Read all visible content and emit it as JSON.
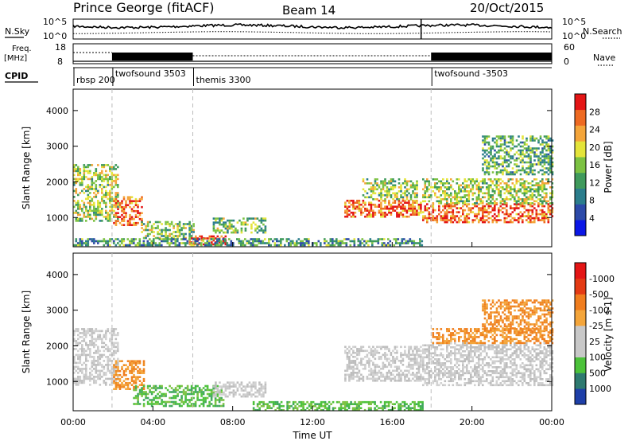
{
  "header": {
    "title": "Prince George (fitACF)",
    "beam": "Beam 14",
    "date": "20/Oct/2015"
  },
  "noise_panel": {
    "left_label": "N.Sky",
    "right_label": "N.Search",
    "left_ticks": [
      "10^5",
      "10^0"
    ],
    "right_ticks": [
      "10^5",
      "10^0"
    ]
  },
  "freq_panel": {
    "left_label_line1": "Freq.",
    "left_label_line2": "[MHz]",
    "right_label": "Nave",
    "left_ticks": [
      "18",
      "8"
    ],
    "right_ticks": [
      "60",
      "0"
    ]
  },
  "cpid": {
    "label": "CPID",
    "segments": [
      {
        "name": "rbsp 200",
        "start": 0.0
      },
      {
        "name": "twofsound 3503",
        "start": 1.95
      },
      {
        "name": "themis 3300",
        "start": 6.0
      },
      {
        "name": "twofsound -3503",
        "start": 17.95
      }
    ]
  },
  "x_axis": {
    "label": "Time UT",
    "ticks": [
      "00:00",
      "04:00",
      "08:00",
      "12:00",
      "16:00",
      "20:00",
      "00:00"
    ],
    "range_hours": [
      0,
      24
    ]
  },
  "chart_data": [
    {
      "type": "heatmap",
      "ylabel": "Slant Range [km]",
      "ylim": [
        180,
        4600
      ],
      "yticks": [
        1000,
        2000,
        3000,
        4000
      ],
      "colorbar": {
        "label": "Power [dB]",
        "ticks": [
          "4",
          "8",
          "12",
          "16",
          "20",
          "24",
          "28"
        ],
        "range": [
          0,
          32
        ],
        "colors": [
          "#0b17e6",
          "#2c4aa8",
          "#2b7d8c",
          "#3f9a5c",
          "#7cc242",
          "#e4e43a",
          "#f4a53a",
          "#ee6a22",
          "#e41515"
        ]
      },
      "echo_bands": [
        {
          "t0": 0.0,
          "t1": 2.2,
          "r0": 900,
          "r1": 2500,
          "level": 0.55
        },
        {
          "t0": 2.0,
          "t1": 3.4,
          "r0": 800,
          "r1": 1600,
          "level": 0.9
        },
        {
          "t0": 3.4,
          "t1": 6.0,
          "r0": 400,
          "r1": 900,
          "level": 0.5
        },
        {
          "t0": 5.8,
          "t1": 7.6,
          "r0": 260,
          "r1": 500,
          "level": 0.95
        },
        {
          "t0": 7.0,
          "t1": 9.6,
          "r0": 600,
          "r1": 1000,
          "level": 0.45
        },
        {
          "t0": 0.0,
          "t1": 17.5,
          "r0": 200,
          "r1": 420,
          "level": 0.35
        },
        {
          "t0": 13.6,
          "t1": 17.4,
          "r0": 1000,
          "r1": 1500,
          "level": 0.85
        },
        {
          "t0": 14.5,
          "t1": 17.2,
          "r0": 1500,
          "r1": 2100,
          "level": 0.5
        },
        {
          "t0": 17.5,
          "t1": 24.0,
          "r0": 850,
          "r1": 1400,
          "level": 0.9
        },
        {
          "t0": 17.5,
          "t1": 24.0,
          "r0": 1400,
          "r1": 2100,
          "level": 0.55
        },
        {
          "t0": 20.5,
          "t1": 24.0,
          "r0": 2200,
          "r1": 3300,
          "level": 0.4
        }
      ]
    },
    {
      "type": "heatmap",
      "ylabel": "Slant Range [km]",
      "ylim": [
        180,
        4600
      ],
      "yticks": [
        1000,
        2000,
        3000,
        4000
      ],
      "colorbar": {
        "label": "Velocity [m s-1]",
        "ticks": [
          "1000",
          "500",
          "100",
          "25",
          "-25",
          "-100",
          "-500",
          "-1000"
        ],
        "colors": [
          "#1e3fa8",
          "#2e7a70",
          "#4cc23a",
          "#c8c8c8",
          "#c8c8c8",
          "#f4a53a",
          "#f07d1e",
          "#e43a14",
          "#e41515"
        ]
      },
      "echo_bands": [
        {
          "t0": 0.0,
          "t1": 2.2,
          "r0": 900,
          "r1": 2500,
          "class": "grey"
        },
        {
          "t0": 2.0,
          "t1": 3.5,
          "r0": 800,
          "r1": 1600,
          "class": "orange"
        },
        {
          "t0": 3.0,
          "t1": 7.5,
          "r0": 300,
          "r1": 900,
          "class": "green"
        },
        {
          "t0": 7.0,
          "t1": 9.6,
          "r0": 600,
          "r1": 1000,
          "class": "grey"
        },
        {
          "t0": 9.0,
          "t1": 17.5,
          "r0": 200,
          "r1": 450,
          "class": "green"
        },
        {
          "t0": 13.6,
          "t1": 17.4,
          "r0": 1000,
          "r1": 2000,
          "class": "grey"
        },
        {
          "t0": 17.5,
          "t1": 24.0,
          "r0": 900,
          "r1": 2100,
          "class": "grey"
        },
        {
          "t0": 18.0,
          "t1": 24.0,
          "r0": 2100,
          "r1": 2500,
          "class": "orange"
        },
        {
          "t0": 20.5,
          "t1": 24.0,
          "r0": 2400,
          "r1": 3300,
          "class": "orange"
        }
      ]
    }
  ]
}
